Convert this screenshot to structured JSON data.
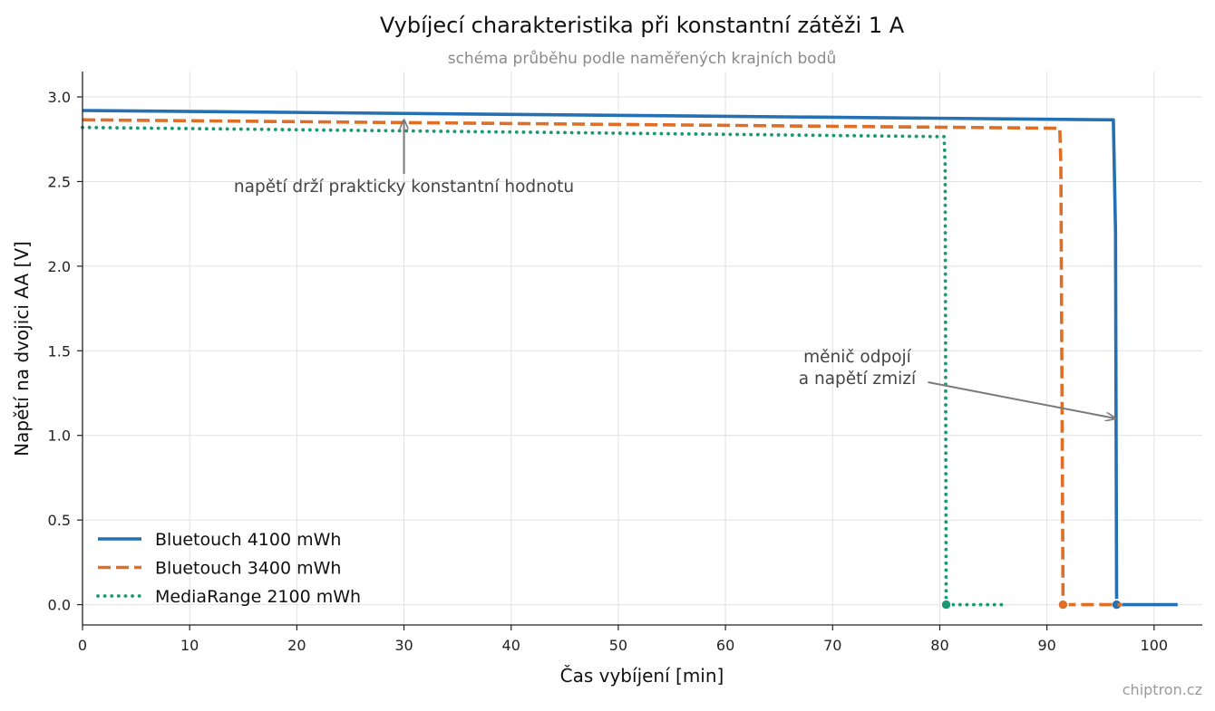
{
  "chart_data": {
    "type": "line",
    "title": "Vybíjecí charakteristika při konstantní zátěži 1 A",
    "subtitle": "schéma průběhu podle naměřených krajních bodů",
    "xlabel": "Čas vybíjení [min]",
    "ylabel": "Napětí na dvojici AA [V]",
    "xlim": [
      0,
      104.5
    ],
    "ylim": [
      -0.12,
      3.15
    ],
    "xticks": [
      "0",
      "10",
      "20",
      "30",
      "40",
      "50",
      "60",
      "70",
      "80",
      "90",
      "100"
    ],
    "yticks": [
      "0.0",
      "0.5",
      "1.0",
      "1.5",
      "2.0",
      "2.5",
      "3.0"
    ],
    "grid": true,
    "legend_position": "lower-left",
    "series": [
      {
        "name": "Bluetouch 4100 mWh",
        "color": "#2470b2",
        "style": "solid",
        "points": [
          [
            0,
            2.92
          ],
          [
            96.2,
            2.865
          ],
          [
            96.4,
            2.2
          ],
          [
            96.5,
            0.0
          ]
        ],
        "tail": [
          [
            96.5,
            0.0
          ],
          [
            102.2,
            0.0
          ]
        ],
        "endpoint": [
          96.5,
          0.0
        ]
      },
      {
        "name": "Bluetouch 3400 mWh",
        "color": "#df6e27",
        "style": "dashed",
        "points": [
          [
            0,
            2.865
          ],
          [
            91.2,
            2.815
          ],
          [
            91.3,
            2.6
          ],
          [
            91.5,
            0.0
          ]
        ],
        "tail": [
          [
            91.5,
            0.0
          ],
          [
            97.0,
            0.0
          ]
        ],
        "endpoint": [
          91.5,
          0.0
        ]
      },
      {
        "name": "MediaRange 2100 mWh",
        "color": "#1a9a72",
        "style": "dotted",
        "points": [
          [
            0,
            2.82
          ],
          [
            80.4,
            2.765
          ],
          [
            80.5,
            2.6
          ],
          [
            80.6,
            0.0
          ]
        ],
        "tail": [
          [
            80.6,
            0.0
          ],
          [
            85.8,
            0.0
          ]
        ],
        "endpoint": [
          80.6,
          0.0
        ]
      }
    ],
    "annotations": [
      {
        "id": "constant",
        "lines": [
          "napětí drží prakticky konstantní hodnotu"
        ],
        "target": [
          30,
          2.865
        ],
        "text_at": [
          30,
          2.47
        ]
      },
      {
        "id": "cutoff",
        "lines": [
          "měnič odpojí",
          "a napětí zmizí"
        ],
        "target": [
          96.4,
          1.1
        ],
        "text_at": [
          72.3,
          1.4
        ]
      }
    ]
  },
  "credit": "chiptron.cz"
}
